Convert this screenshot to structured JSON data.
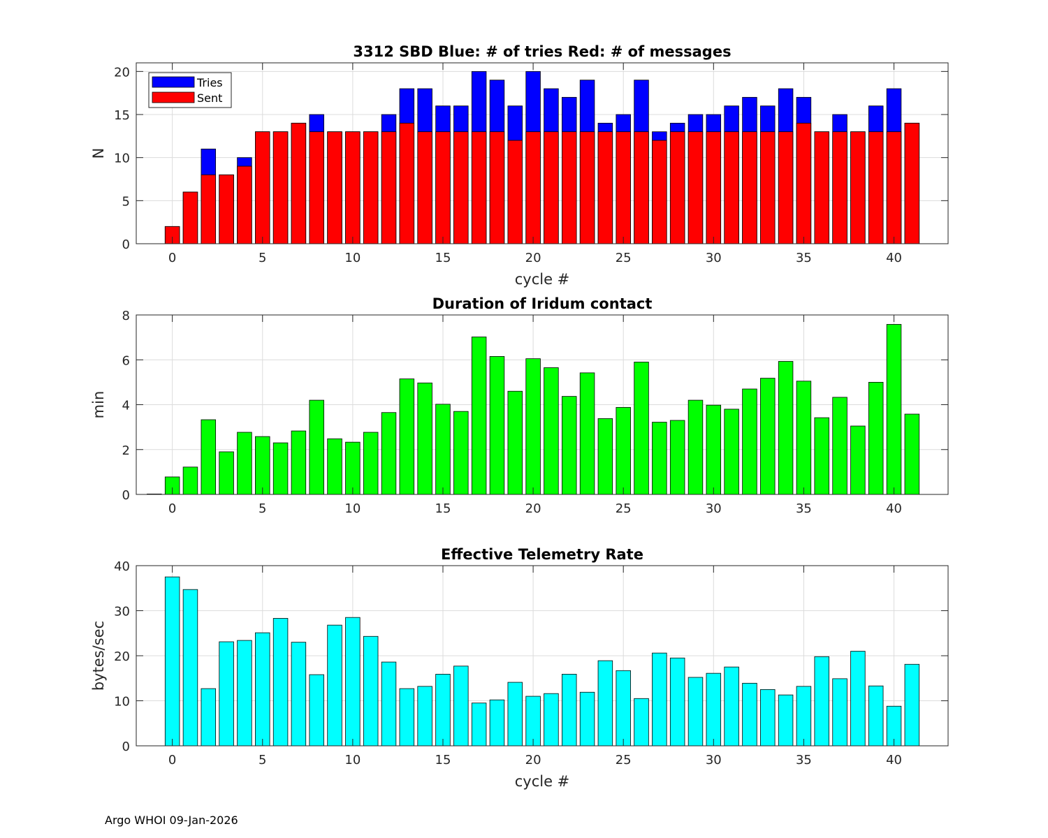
{
  "footer": "Argo WHOI 09-Jan-2026",
  "chart_data": [
    {
      "type": "bar",
      "title": "3312 SBD  Blue: # of tries   Red: # of messages",
      "xlabel": "cycle #",
      "ylabel": "N",
      "xlim": [
        -2,
        43
      ],
      "ylim": [
        0,
        21
      ],
      "xticks": [
        0,
        5,
        10,
        15,
        20,
        25,
        30,
        35,
        40
      ],
      "yticks": [
        0,
        5,
        10,
        15,
        20
      ],
      "grid": true,
      "legend": {
        "position": "top-left",
        "entries": [
          "Tries",
          "Sent"
        ]
      },
      "x": [
        0,
        1,
        2,
        3,
        4,
        5,
        6,
        7,
        8,
        9,
        10,
        11,
        12,
        13,
        14,
        15,
        16,
        17,
        18,
        19,
        20,
        21,
        22,
        23,
        24,
        25,
        26,
        27,
        28,
        29,
        30,
        31,
        32,
        33,
        34,
        35,
        36,
        37,
        38,
        39,
        40,
        41
      ],
      "series": [
        {
          "name": "Tries",
          "color": "#0000ff",
          "values": [
            2,
            6,
            11,
            8,
            10,
            13,
            13,
            14,
            15,
            13,
            13,
            13,
            15,
            18,
            18,
            16,
            16,
            20,
            19,
            16,
            20,
            18,
            17,
            19,
            14,
            15,
            19,
            13,
            14,
            15,
            15,
            16,
            17,
            16,
            18,
            17,
            13,
            15,
            13,
            16,
            18,
            14
          ]
        },
        {
          "name": "Sent",
          "color": "#ff0000",
          "values": [
            2,
            6,
            8,
            8,
            9,
            13,
            13,
            14,
            13,
            13,
            13,
            13,
            13,
            14,
            13,
            13,
            13,
            13,
            13,
            12,
            13,
            13,
            13,
            13,
            13,
            13,
            13,
            12,
            13,
            13,
            13,
            13,
            13,
            13,
            13,
            14,
            13,
            13,
            13,
            13,
            13,
            14
          ]
        }
      ]
    },
    {
      "type": "bar",
      "title": "Duration of Iridum contact",
      "xlabel": "",
      "ylabel": "min",
      "xlim": [
        -2,
        43
      ],
      "ylim": [
        0,
        8
      ],
      "xticks": [
        0,
        5,
        10,
        15,
        20,
        25,
        30,
        35,
        40
      ],
      "yticks": [
        0,
        2,
        4,
        6,
        8
      ],
      "grid": true,
      "color": "#00ff00",
      "x": [
        -1,
        0,
        1,
        2,
        3,
        4,
        5,
        6,
        7,
        8,
        9,
        10,
        11,
        12,
        13,
        14,
        15,
        16,
        17,
        18,
        19,
        20,
        21,
        22,
        23,
        24,
        25,
        26,
        27,
        28,
        29,
        30,
        31,
        32,
        33,
        34,
        35,
        36,
        37,
        38,
        39,
        40,
        41
      ],
      "values": [
        0.02,
        0.78,
        1.22,
        3.33,
        1.9,
        2.77,
        2.58,
        2.3,
        2.83,
        4.2,
        2.48,
        2.33,
        2.77,
        3.65,
        5.15,
        4.97,
        4.02,
        3.7,
        7.02,
        6.15,
        4.6,
        6.05,
        5.65,
        4.37,
        5.42,
        3.38,
        3.88,
        5.9,
        3.22,
        3.3,
        4.2,
        3.98,
        3.8,
        4.7,
        5.18,
        5.93,
        5.05,
        3.42,
        4.33,
        3.05,
        5.0,
        7.58,
        3.58
      ]
    },
    {
      "type": "bar",
      "title": "Effective Telemetry Rate",
      "xlabel": "cycle #",
      "ylabel": "bytes/sec",
      "xlim": [
        -2,
        43
      ],
      "ylim": [
        0,
        40
      ],
      "xticks": [
        0,
        5,
        10,
        15,
        20,
        25,
        30,
        35,
        40
      ],
      "yticks": [
        0,
        10,
        20,
        30,
        40
      ],
      "grid": true,
      "color": "#00ffff",
      "x": [
        0,
        1,
        2,
        3,
        4,
        5,
        6,
        7,
        8,
        9,
        10,
        11,
        12,
        13,
        14,
        15,
        16,
        17,
        18,
        19,
        20,
        21,
        22,
        23,
        24,
        25,
        26,
        27,
        28,
        29,
        30,
        31,
        32,
        33,
        34,
        35,
        36,
        37,
        38,
        39,
        40,
        41
      ],
      "values": [
        37.5,
        34.7,
        12.7,
        23.1,
        23.4,
        25.1,
        28.3,
        23.0,
        15.8,
        26.8,
        28.5,
        24.3,
        18.6,
        12.7,
        13.2,
        15.9,
        17.7,
        9.5,
        10.2,
        14.1,
        11.0,
        11.6,
        15.9,
        11.9,
        18.9,
        16.7,
        10.5,
        20.6,
        19.5,
        15.2,
        16.1,
        17.5,
        13.9,
        12.5,
        11.3,
        13.2,
        19.8,
        14.9,
        21.0,
        13.3,
        8.8,
        18.1
      ]
    }
  ]
}
